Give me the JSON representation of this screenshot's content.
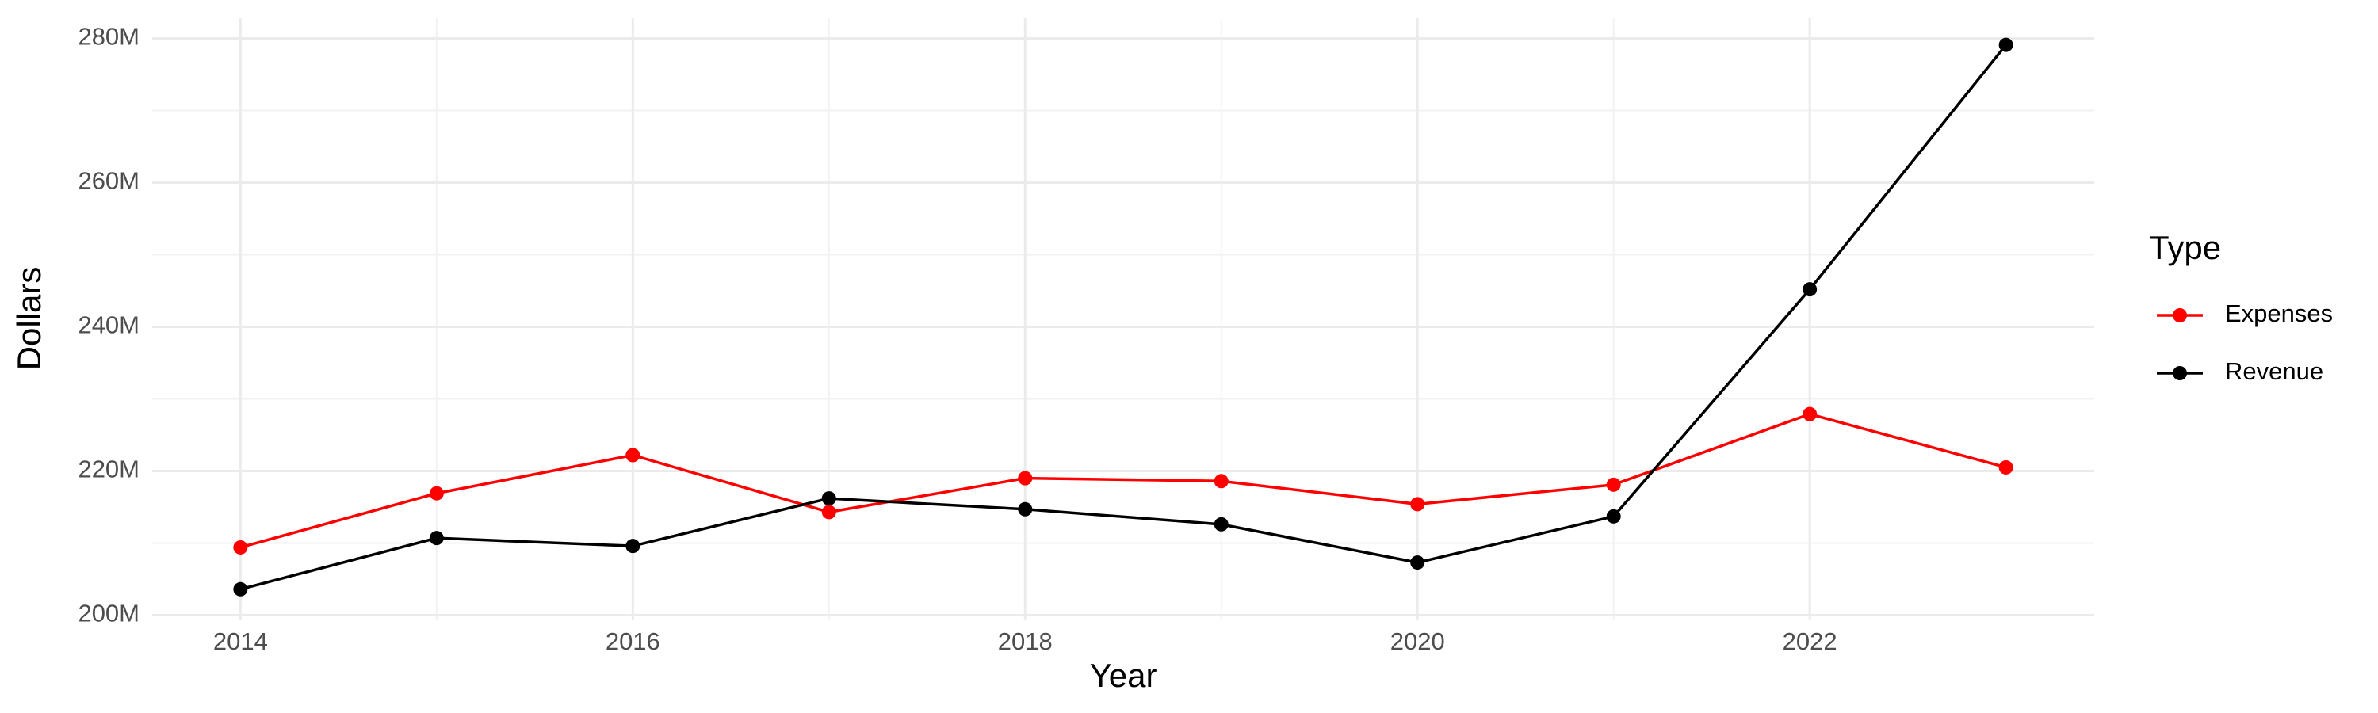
{
  "chart_data": {
    "type": "line",
    "x_label": "Year",
    "y_label": "Dollars",
    "legend_title": "Type",
    "x": [
      2014,
      2015,
      2016,
      2017,
      2018,
      2019,
      2020,
      2021,
      2022,
      2023
    ],
    "series": [
      {
        "name": "Expenses",
        "color": "#ff0000",
        "values": [
          209400000,
          216900000,
          222200000,
          214300000,
          219000000,
          218600000,
          215400000,
          218100000,
          227900000,
          220500000
        ]
      },
      {
        "name": "Revenue",
        "color": "#000000",
        "values": [
          203600000,
          210700000,
          209600000,
          216200000,
          214700000,
          212600000,
          207300000,
          213700000,
          245200000,
          279100000
        ]
      }
    ],
    "xlim": [
      2013.55,
      2023.45
    ],
    "xticks": [
      2014,
      2016,
      2018,
      2020,
      2022
    ],
    "ylim": [
      199400000,
      282800000
    ],
    "yticks": [
      {
        "value": 200000000,
        "label": "200M"
      },
      {
        "value": 220000000,
        "label": "220M"
      },
      {
        "value": 240000000,
        "label": "240M"
      },
      {
        "value": 260000000,
        "label": "260M"
      },
      {
        "value": 280000000,
        "label": "280M"
      }
    ],
    "grid": true,
    "legend_position": "right"
  }
}
